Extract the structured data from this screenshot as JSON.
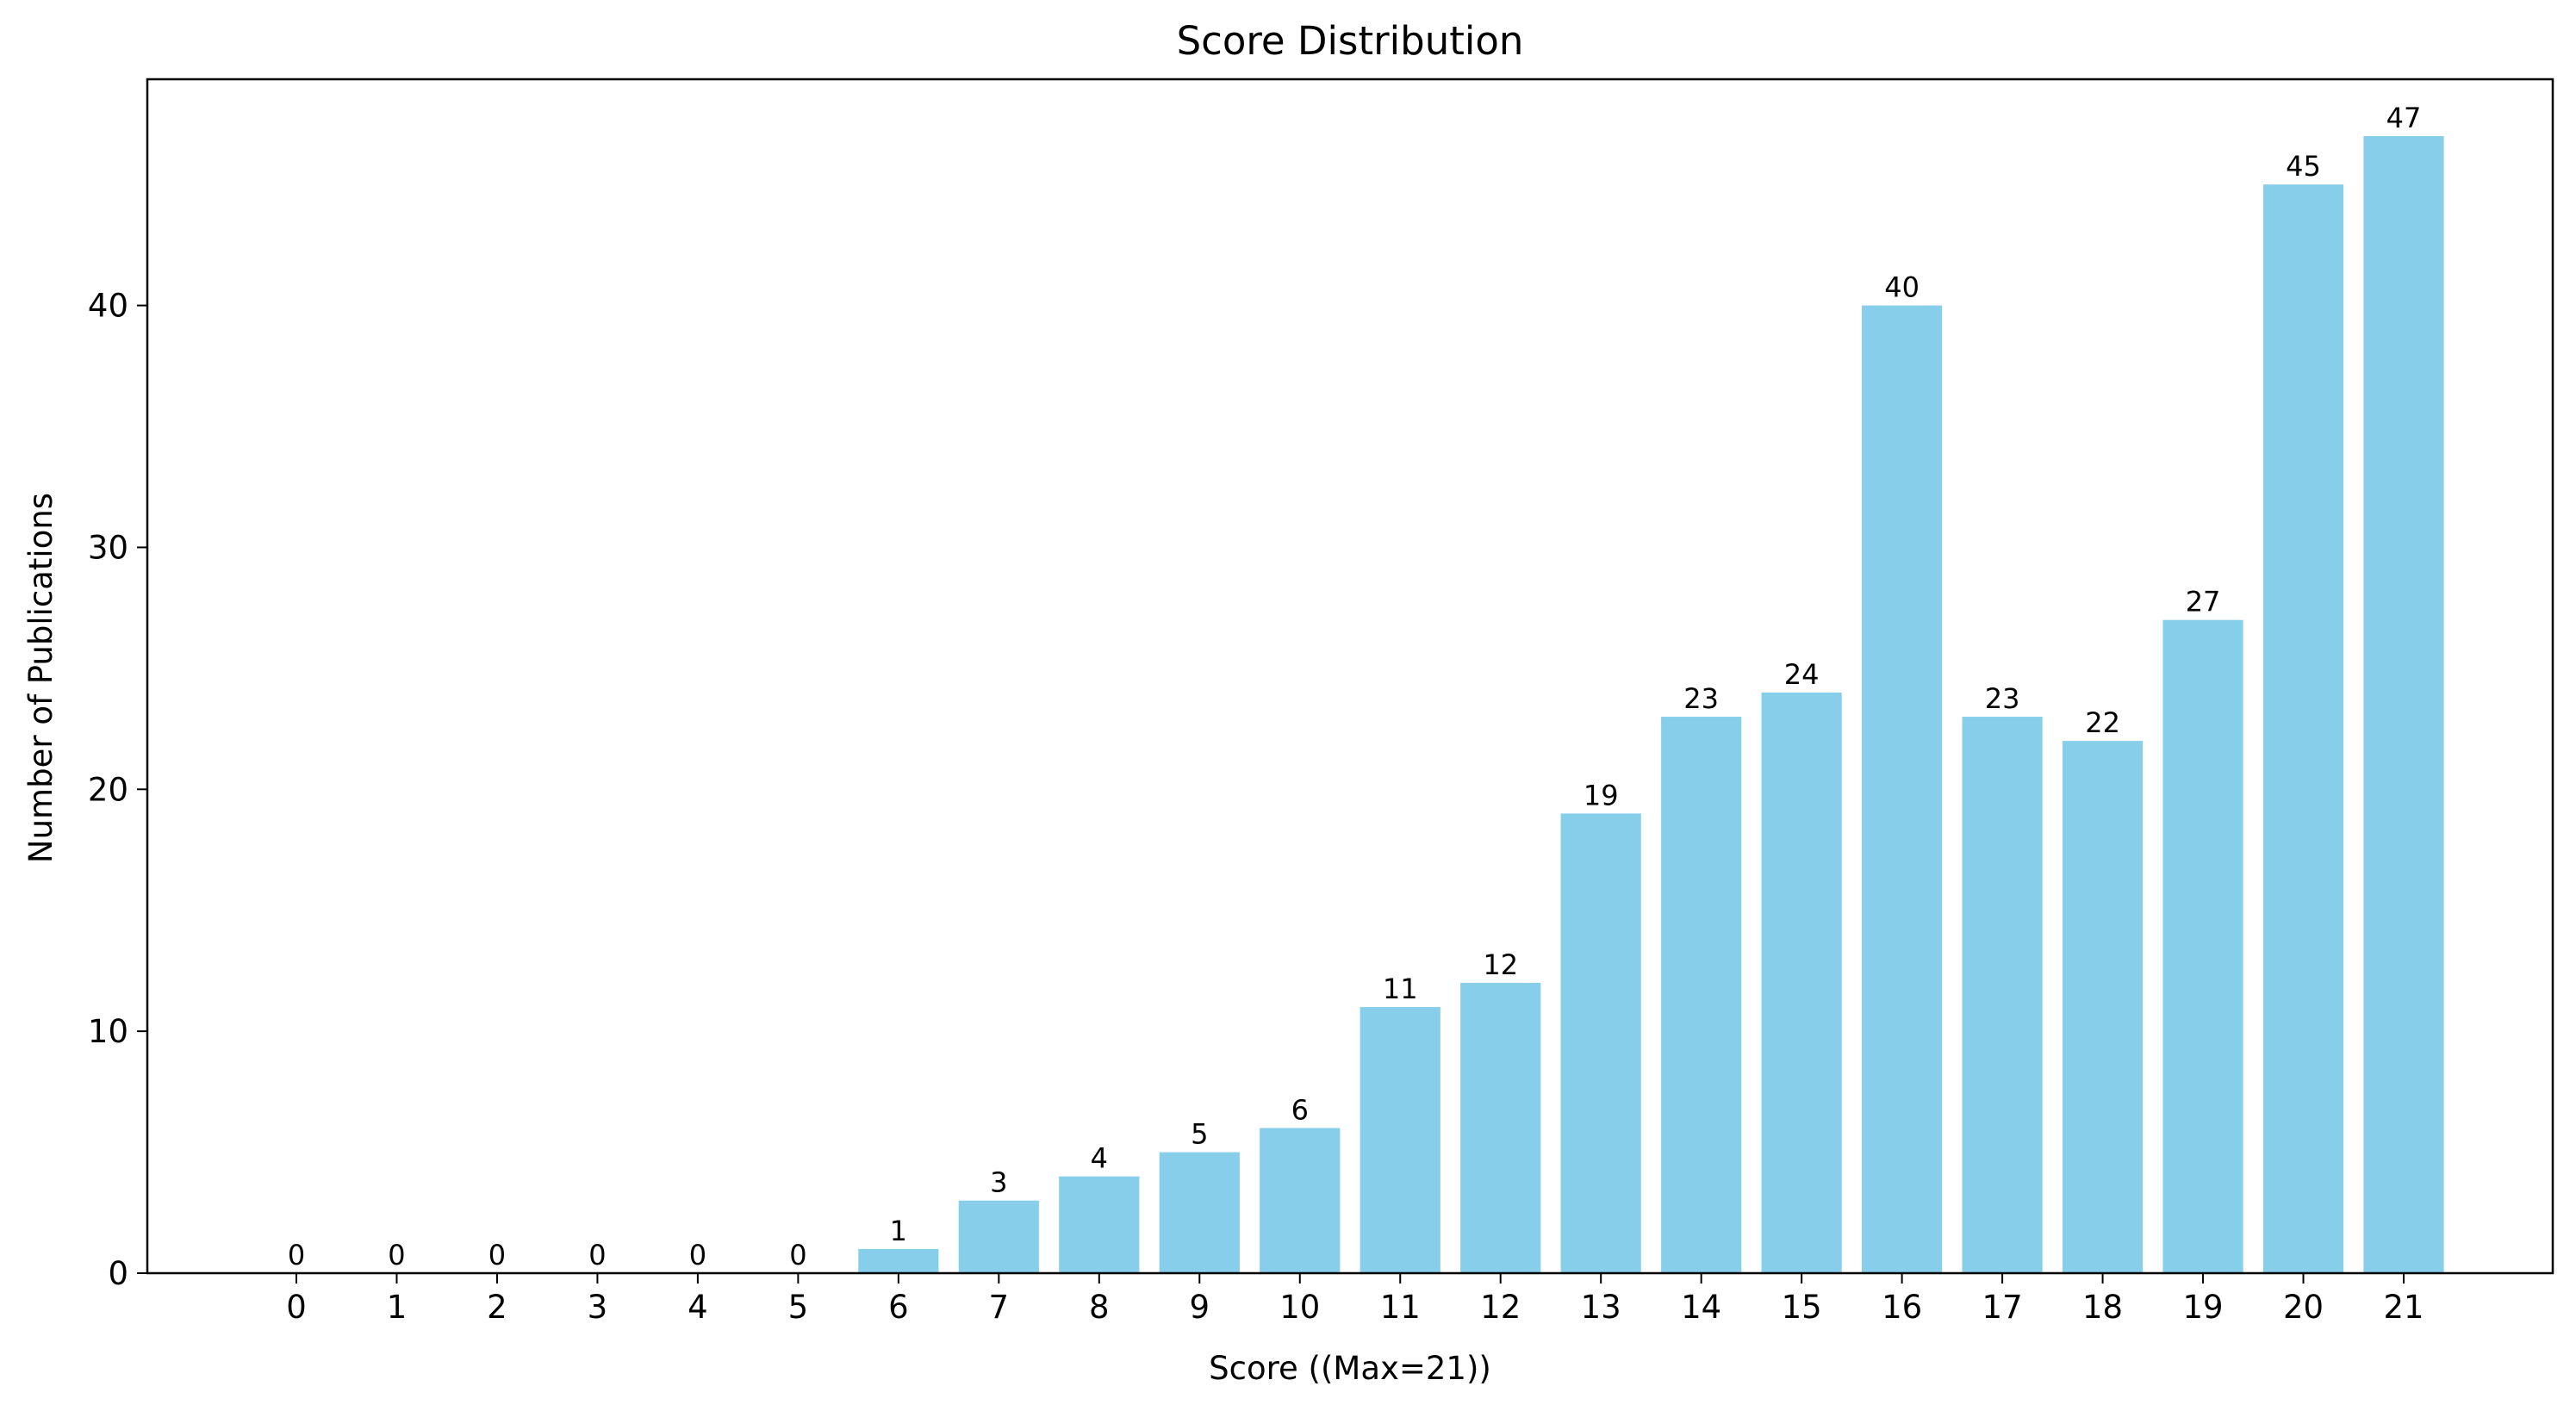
{
  "chart_data": {
    "type": "bar",
    "title": "Score Distribution",
    "xlabel": "Score ((Max=21))",
    "ylabel": "Number of Publications",
    "categories": [
      "0",
      "1",
      "2",
      "3",
      "4",
      "5",
      "6",
      "7",
      "8",
      "9",
      "10",
      "11",
      "12",
      "13",
      "14",
      "15",
      "16",
      "17",
      "18",
      "19",
      "20",
      "21"
    ],
    "values": [
      0,
      0,
      0,
      0,
      0,
      0,
      1,
      3,
      4,
      5,
      6,
      11,
      12,
      19,
      23,
      24,
      40,
      23,
      22,
      27,
      45,
      47
    ],
    "data_labels": [
      "0",
      "0",
      "0",
      "0",
      "0",
      "0",
      "1",
      "3",
      "4",
      "5",
      "6",
      "11",
      "12",
      "19",
      "23",
      "24",
      "40",
      "23",
      "22",
      "27",
      "45",
      "47"
    ],
    "ylim": [
      0,
      49.35
    ],
    "yticks": [
      0,
      10,
      20,
      30,
      40
    ],
    "ytick_labels": [
      "0",
      "10",
      "20",
      "30",
      "40"
    ],
    "bar_color": "#87ceeb",
    "grid": false,
    "legend": "none"
  }
}
